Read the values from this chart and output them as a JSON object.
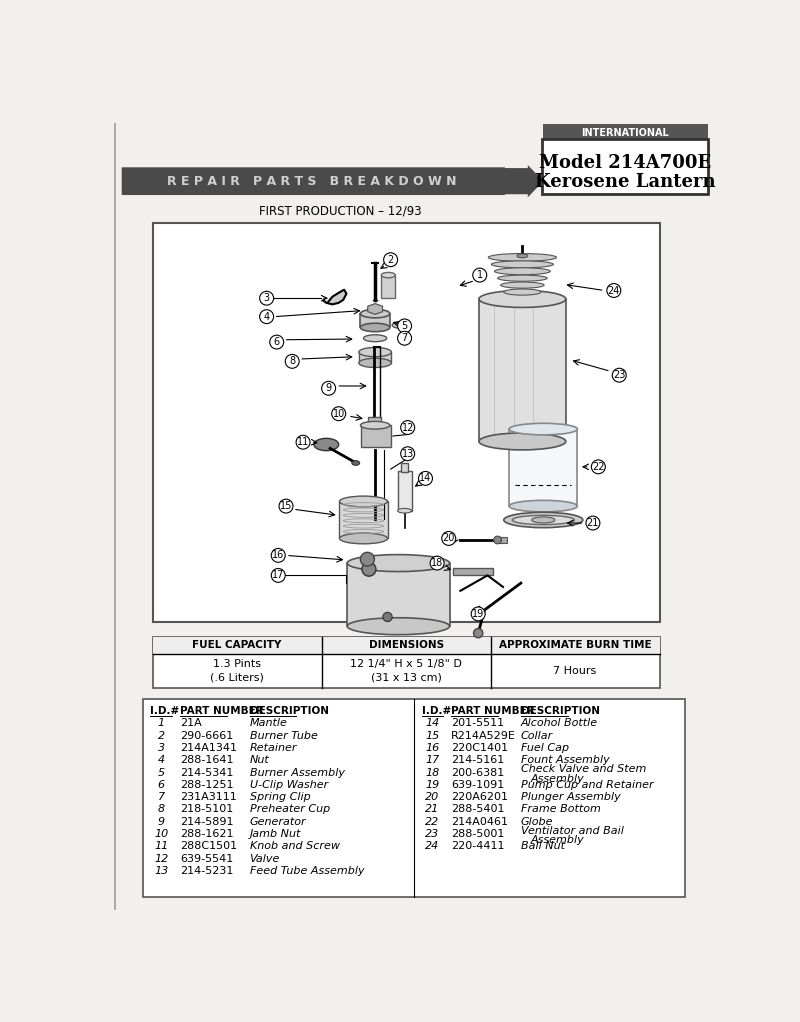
{
  "page_bg": "#f2f0ed",
  "title_box": {
    "brand": "INTERNATIONAL",
    "model": "Model 214A700E",
    "product": "Kerosene Lantern",
    "border_color": "#333333"
  },
  "banner": {
    "text": "R E P A I R   P A R T S   B R E A K D O W N",
    "bg_color": "#4a4a4a",
    "text_color": "#d0d0d0"
  },
  "subtitle": "FIRST PRODUCTION – 12/93",
  "specs_table": {
    "headers": [
      "FUEL CAPACITY",
      "DIMENSIONS",
      "APPROXIMATE BURN TIME"
    ],
    "row": [
      "1.3 Pints\n(.6 Liters)",
      "12 1/4\" H x 5 1/8\" D\n(31 x 13 cm)",
      "7 Hours"
    ]
  },
  "parts": [
    {
      "id": "1",
      "part": "21A",
      "desc": "Mantle"
    },
    {
      "id": "2",
      "part": "290-6661",
      "desc": "Burner Tube"
    },
    {
      "id": "3",
      "part": "214A1341",
      "desc": "Retainer"
    },
    {
      "id": "4",
      "part": "288-1641",
      "desc": "Nut"
    },
    {
      "id": "5",
      "part": "214-5341",
      "desc": "Burner Assembly"
    },
    {
      "id": "6",
      "part": "288-1251",
      "desc": "U-Clip Washer"
    },
    {
      "id": "7",
      "part": "231A3111",
      "desc": "Spring Clip"
    },
    {
      "id": "8",
      "part": "218-5101",
      "desc": "Preheater Cup"
    },
    {
      "id": "9",
      "part": "214-5891",
      "desc": "Generator"
    },
    {
      "id": "10",
      "part": "288-1621",
      "desc": "Jamb Nut"
    },
    {
      "id": "11",
      "part": "288C1501",
      "desc": "Knob and Screw"
    },
    {
      "id": "12",
      "part": "639-5541",
      "desc": "Valve"
    },
    {
      "id": "13",
      "part": "214-5231",
      "desc": "Feed Tube Assembly"
    },
    {
      "id": "14",
      "part": "201-5511",
      "desc": "Alcohol Bottle"
    },
    {
      "id": "15",
      "part": "R214A529E",
      "desc": "Collar"
    },
    {
      "id": "16",
      "part": "220C1401",
      "desc": "Fuel Cap"
    },
    {
      "id": "17",
      "part": "214-5161",
      "desc": "Fount Assembly"
    },
    {
      "id": "18",
      "part": "200-6381",
      "desc": "Check Valve and Stem\nAssembly"
    },
    {
      "id": "19",
      "part": "639-1091",
      "desc": "Pump Cup and Retainer"
    },
    {
      "id": "20",
      "part": "220A6201",
      "desc": "Plunger Assembly"
    },
    {
      "id": "21",
      "part": "288-5401",
      "desc": "Frame Bottom"
    },
    {
      "id": "22",
      "part": "214A0461",
      "desc": "Globe"
    },
    {
      "id": "23",
      "part": "288-5001",
      "desc": "Ventilator and Bail\nAssembly"
    },
    {
      "id": "24",
      "part": "220-4411",
      "desc": "Ball Nut"
    }
  ]
}
